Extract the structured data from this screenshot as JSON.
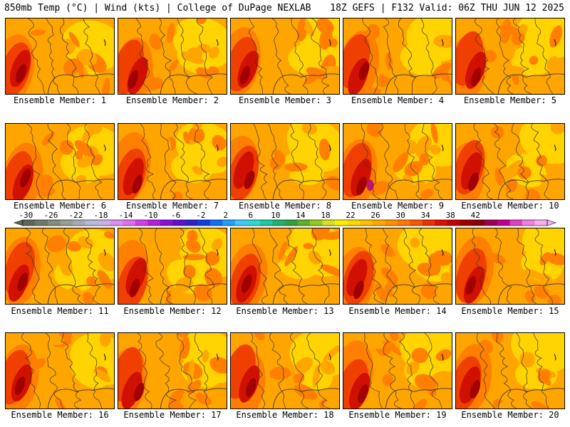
{
  "header": {
    "left": "850mb Temp (°C) | Wind (kts) | College of DuPage NEXLAB",
    "right": "18Z GEFS | F132 Valid: 06Z THU JUN 12 2025"
  },
  "members": [
    "Ensemble Member: 1",
    "Ensemble Member: 2",
    "Ensemble Member: 3",
    "Ensemble Member: 4",
    "Ensemble Member: 5",
    "Ensemble Member: 6",
    "Ensemble Member: 7",
    "Ensemble Member: 8",
    "Ensemble Member: 9",
    "Ensemble Member: 10",
    "Ensemble Member: 11",
    "Ensemble Member: 12",
    "Ensemble Member: 13",
    "Ensemble Member: 14",
    "Ensemble Member: 15",
    "Ensemble Member: 16",
    "Ensemble Member: 17",
    "Ensemble Member: 18",
    "Ensemble Member: 19",
    "Ensemble Member: 20"
  ],
  "colorbar": {
    "tick_labels": [
      "-30",
      "-26",
      "-22",
      "-18",
      "-14",
      "-10",
      "-6",
      "-2",
      "2",
      "6",
      "10",
      "14",
      "18",
      "22",
      "26",
      "30",
      "34",
      "38",
      "42"
    ],
    "colors": [
      "#5a6a5a",
      "#6e7a6e",
      "#828c82",
      "#969e96",
      "#a8a8b8",
      "#b8b8d8",
      "#c8b0e8",
      "#d890f0",
      "#e070f0",
      "#d040e8",
      "#b020e0",
      "#8810d8",
      "#6010c8",
      "#3020c8",
      "#1040e0",
      "#1070f0",
      "#20a0f8",
      "#40c8f8",
      "#30d8d0",
      "#20c8a0",
      "#20b070",
      "#30a040",
      "#60b030",
      "#98c820",
      "#d8e020",
      "#fff000",
      "#ffd800",
      "#ffc000",
      "#ffa800",
      "#ff9000",
      "#ff7800",
      "#f85800",
      "#f03000",
      "#e01000",
      "#c00000",
      "#a00000",
      "#880010",
      "#a00050",
      "#c00090",
      "#e040c0",
      "#f080e0",
      "#f8b0f0"
    ]
  },
  "colors": {
    "cool": "#ffd400",
    "mid": "#ffa500",
    "warm": "#ff8000",
    "hot": "#f04000",
    "hotter": "#d01000",
    "hottest": "#a00000",
    "extreme": "#c01070",
    "lines": "#333333"
  }
}
